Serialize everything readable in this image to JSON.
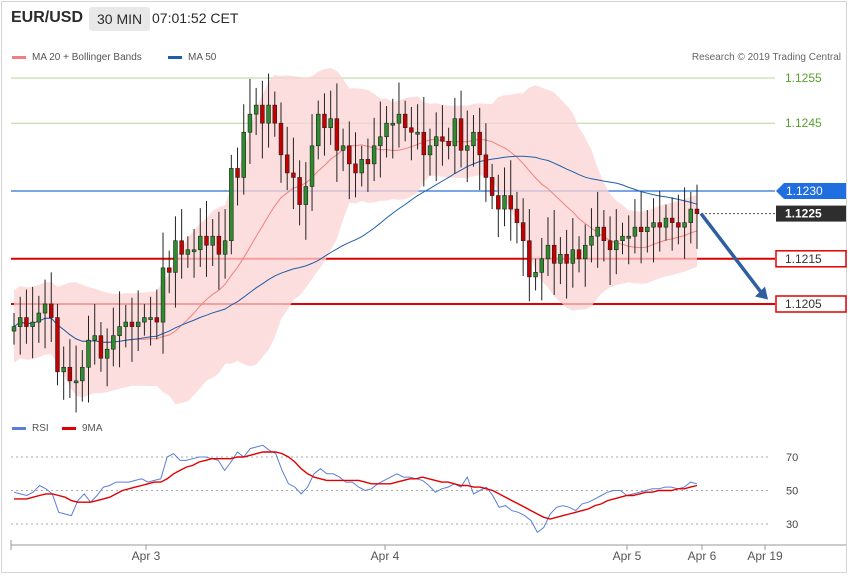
{
  "header": {
    "symbol": "EUR/USD",
    "timeframe": "30 MIN",
    "time": "07:01:52 CET"
  },
  "legend": {
    "bollinger": {
      "label": "MA 20 + Bollinger Bands",
      "color": "#f08080"
    },
    "ma50": {
      "label": "MA 50",
      "color": "#1f5fa8"
    }
  },
  "credit": "Research © 2019 Trading Central",
  "rsi_legend": {
    "rsi": {
      "label": "RSI",
      "color": "#5b7fd6"
    },
    "ma9": {
      "label": "9MA",
      "color": "#e00000"
    }
  },
  "chart_data": [
    {
      "type": "candlestick",
      "ylim": [
        1.1193,
        1.126
      ],
      "x_ticks": [
        "Apr 3",
        "Apr 4",
        "Apr 5",
        "Apr 6",
        "Apr 19"
      ],
      "price_levels": [
        {
          "value": 1.1255,
          "label": "1.1255",
          "color": "#5aa02c",
          "style": "support-resistance"
        },
        {
          "value": 1.1245,
          "label": "1.1245",
          "color": "#5aa02c",
          "style": "support-resistance"
        },
        {
          "value": 1.123,
          "label": "1.1230",
          "color": "#2f6fd6",
          "style": "pivot"
        },
        {
          "value": 1.1225,
          "label": "1.1225",
          "color": "#333333",
          "style": "last-price"
        },
        {
          "value": 1.1215,
          "label": "1.1215",
          "color": "#e00000",
          "style": "target"
        },
        {
          "value": 1.1205,
          "label": "1.1205",
          "color": "#e00000",
          "style": "target"
        }
      ],
      "close": [
        1.12,
        1.1202,
        1.12,
        1.1201,
        1.1203,
        1.1205,
        1.1202,
        1.119,
        1.1191,
        1.1188,
        1.1188,
        1.1191,
        1.1197,
        1.1198,
        1.1193,
        1.1195,
        1.1198,
        1.12,
        1.1201,
        1.12,
        1.1201,
        1.1202,
        1.1202,
        1.1201,
        1.1213,
        1.1212,
        1.1219,
        1.1216,
        1.1217,
        1.1217,
        1.122,
        1.1218,
        1.122,
        1.1216,
        1.1219,
        1.1235,
        1.1233,
        1.1243,
        1.1247,
        1.1249,
        1.1245,
        1.1249,
        1.1245,
        1.1238,
        1.1234,
        1.1233,
        1.1227,
        1.1231,
        1.124,
        1.1247,
        1.1244,
        1.1246,
        1.1239,
        1.124,
        1.1236,
        1.1234,
        1.1237,
        1.1236,
        1.124,
        1.1242,
        1.1245,
        1.1245,
        1.1247,
        1.1244,
        1.1243,
        1.1243,
        1.1238,
        1.124,
        1.1242,
        1.1241,
        1.124,
        1.1246,
        1.1239,
        1.124,
        1.1243,
        1.1238,
        1.1233,
        1.1229,
        1.1226,
        1.1229,
        1.1226,
        1.1223,
        1.1219,
        1.1211,
        1.1212,
        1.1215,
        1.1218,
        1.1214,
        1.1216,
        1.1214,
        1.1217,
        1.1215,
        1.1218,
        1.122,
        1.1222,
        1.1219,
        1.1217,
        1.1219,
        1.122,
        1.122,
        1.1222,
        1.1221,
        1.1222,
        1.1223,
        1.1222,
        1.1224,
        1.1223,
        1.1222,
        1.1223,
        1.1226,
        1.1225
      ],
      "open": [
        1.1199,
        1.12,
        1.1202,
        1.12,
        1.1201,
        1.1203,
        1.1205,
        1.1202,
        1.119,
        1.1191,
        1.1188,
        1.1188,
        1.1191,
        1.1197,
        1.1198,
        1.1193,
        1.1195,
        1.1198,
        1.12,
        1.1201,
        1.12,
        1.1201,
        1.1202,
        1.1202,
        1.1201,
        1.1213,
        1.1212,
        1.1219,
        1.1216,
        1.1217,
        1.1217,
        1.122,
        1.1218,
        1.122,
        1.1216,
        1.1219,
        1.1235,
        1.1233,
        1.1243,
        1.1247,
        1.1249,
        1.1245,
        1.1249,
        1.1245,
        1.1238,
        1.1234,
        1.1233,
        1.1227,
        1.1231,
        1.124,
        1.1247,
        1.1244,
        1.1246,
        1.1239,
        1.124,
        1.1236,
        1.1234,
        1.1237,
        1.1236,
        1.124,
        1.1242,
        1.1245,
        1.1245,
        1.1247,
        1.1244,
        1.1243,
        1.1243,
        1.1238,
        1.124,
        1.1242,
        1.1241,
        1.124,
        1.1246,
        1.1239,
        1.124,
        1.1243,
        1.1238,
        1.1233,
        1.1229,
        1.1226,
        1.1229,
        1.1226,
        1.1223,
        1.1219,
        1.1211,
        1.1212,
        1.1215,
        1.1218,
        1.1214,
        1.1216,
        1.1214,
        1.1217,
        1.1215,
        1.1218,
        1.122,
        1.1222,
        1.1219,
        1.1217,
        1.1219,
        1.122,
        1.122,
        1.1222,
        1.1221,
        1.1222,
        1.1223,
        1.1222,
        1.1224,
        1.1223,
        1.1222,
        1.1223,
        1.1226
      ]
    },
    {
      "type": "line",
      "name": "RSI",
      "ylim": [
        20,
        85
      ],
      "y_ticks": [
        30,
        50,
        70
      ],
      "series": [
        {
          "name": "RSI",
          "values": [
            49,
            48,
            47,
            49,
            53,
            51,
            48,
            37,
            36,
            35,
            44,
            48,
            43,
            47,
            52,
            53,
            55,
            55,
            55,
            56,
            57,
            55,
            56,
            57,
            70,
            72,
            68,
            68,
            69,
            70,
            70,
            69,
            68,
            62,
            67,
            73,
            70,
            75,
            76,
            77,
            74,
            72,
            62,
            54,
            52,
            48,
            52,
            60,
            63,
            60,
            60,
            58,
            55,
            55,
            52,
            50,
            51,
            54,
            56,
            58,
            60,
            58,
            58,
            57,
            56,
            53,
            49,
            51,
            52,
            54,
            52,
            58,
            48,
            50,
            52,
            47,
            40,
            41,
            38,
            37,
            35,
            32,
            25,
            28,
            36,
            40,
            41,
            40,
            38,
            42,
            43,
            45,
            47,
            49,
            50,
            50,
            47,
            48,
            49,
            50,
            51,
            51,
            52,
            52,
            51,
            52,
            55,
            54
          ],
          "color": "#5b7fd6"
        },
        {
          "name": "9MA",
          "values": [
            45,
            45,
            45,
            46,
            47,
            48,
            48,
            47,
            46,
            44,
            43,
            43,
            43,
            44,
            45,
            46,
            48,
            50,
            51,
            52,
            53,
            54,
            55,
            55,
            57,
            60,
            62,
            64,
            65,
            67,
            68,
            69,
            69,
            69,
            69,
            70,
            70,
            71,
            72,
            73,
            73,
            73,
            72,
            70,
            67,
            63,
            60,
            58,
            57,
            56,
            56,
            56,
            56,
            56,
            56,
            55,
            54,
            54,
            54,
            54,
            55,
            56,
            57,
            57,
            58,
            57,
            56,
            55,
            55,
            54,
            53,
            53,
            52,
            52,
            51,
            50,
            48,
            46,
            44,
            42,
            40,
            38,
            36,
            34,
            33,
            34,
            35,
            36,
            37,
            38,
            39,
            41,
            42,
            44,
            45,
            46,
            47,
            47,
            48,
            49,
            49,
            50,
            50,
            50,
            51,
            51,
            52,
            53
          ],
          "color": "#e00000"
        }
      ]
    }
  ]
}
